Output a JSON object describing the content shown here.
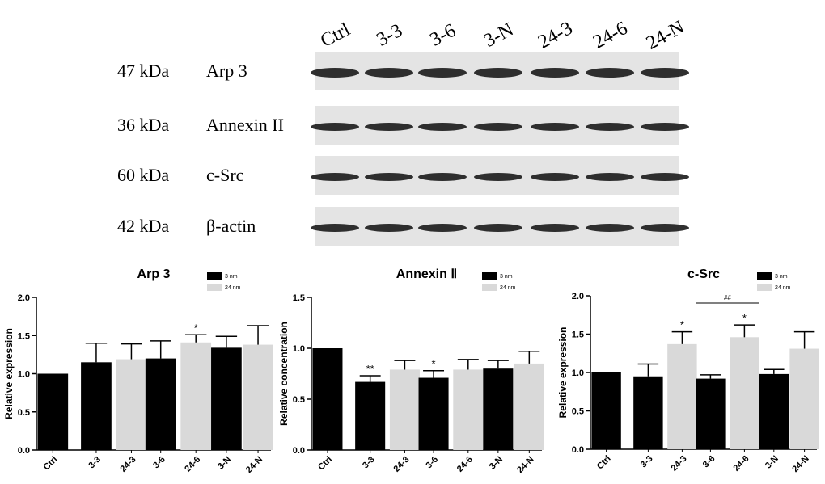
{
  "blot": {
    "lanes": [
      "Ctrl",
      "3-3",
      "3-6",
      "3-N",
      "24-3",
      "24-6",
      "24-N"
    ],
    "rows": [
      {
        "size": "47 kDa",
        "protein": "Arp 3"
      },
      {
        "size": "36 kDa",
        "protein": "Annexin II"
      },
      {
        "size": "60 kDa",
        "protein": "c-Src"
      },
      {
        "size": "42 kDa",
        "protein": "β-actin"
      }
    ]
  },
  "chart_data": [
    {
      "type": "bar",
      "title": "Arp 3",
      "y_label": "Relative expression",
      "categories": [
        "Ctrl",
        "3-3",
        "24-3",
        "3-6",
        "24-6",
        "3-N",
        "24-N"
      ],
      "series": [
        {
          "name": "3 nm",
          "color": "#000000",
          "values": [
            1.0,
            1.15,
            null,
            1.2,
            null,
            1.34,
            null
          ],
          "errors": [
            null,
            0.25,
            null,
            0.23,
            null,
            0.15,
            null
          ]
        },
        {
          "name": "24 nm",
          "color": "#d9d9d9",
          "values": [
            null,
            null,
            1.19,
            null,
            1.41,
            null,
            1.38
          ],
          "errors": [
            null,
            null,
            0.2,
            null,
            0.1,
            null,
            0.25
          ]
        }
      ],
      "value_annotations": [
        null,
        null,
        null,
        null,
        "*",
        null,
        null
      ],
      "ylim": [
        0,
        2
      ],
      "yticks": [
        {
          "value": 0,
          "label": "0.0"
        },
        {
          "value": 0.5,
          "label": "0.5"
        },
        {
          "value": 1,
          "label": "1.0"
        },
        {
          "value": 1.5,
          "label": "1.5"
        },
        {
          "value": 2,
          "label": "2.0"
        }
      ]
    },
    {
      "type": "bar",
      "title": "Annexin Ⅱ",
      "y_label": "Relative concentration",
      "categories": [
        "Ctrl",
        "3-3",
        "24-3",
        "3-6",
        "24-6",
        "3-N",
        "24-N"
      ],
      "series": [
        {
          "name": "3 nm",
          "color": "#000000",
          "values": [
            1.0,
            0.67,
            null,
            0.71,
            null,
            0.8,
            null
          ],
          "errors": [
            null,
            0.06,
            null,
            0.07,
            null,
            0.08,
            null
          ]
        },
        {
          "name": "24 nm",
          "color": "#d9d9d9",
          "values": [
            null,
            null,
            0.79,
            null,
            0.79,
            null,
            0.85
          ],
          "errors": [
            null,
            null,
            0.09,
            null,
            0.1,
            null,
            0.12
          ]
        }
      ],
      "value_annotations": [
        null,
        "**",
        null,
        "*",
        null,
        null,
        null
      ],
      "ylim": [
        0,
        1.5
      ],
      "yticks": [
        {
          "value": 0,
          "label": "0.0"
        },
        {
          "value": 0.5,
          "label": "0.5"
        },
        {
          "value": 1,
          "label": "1.0"
        },
        {
          "value": 1.5,
          "label": "1.5"
        }
      ]
    },
    {
      "type": "bar",
      "title": "c-Src",
      "y_label": "Relative expression",
      "categories": [
        "Ctrl",
        "3-3",
        "24-3",
        "3-6",
        "24-6",
        "3-N",
        "24-N"
      ],
      "series": [
        {
          "name": "3 nm",
          "color": "#000000",
          "values": [
            1.0,
            0.95,
            null,
            0.92,
            null,
            0.98,
            null
          ],
          "errors": [
            null,
            0.16,
            null,
            0.05,
            null,
            0.06,
            null
          ]
        },
        {
          "name": "24 nm",
          "color": "#d9d9d9",
          "values": [
            null,
            null,
            1.37,
            null,
            1.46,
            null,
            1.31
          ],
          "errors": [
            null,
            null,
            0.16,
            null,
            0.16,
            null,
            0.22
          ]
        }
      ],
      "value_annotations": [
        null,
        null,
        "*",
        null,
        "*",
        null,
        null
      ],
      "bracket_label": "##",
      "ylim": [
        0,
        2
      ],
      "yticks": [
        {
          "value": 0,
          "label": "0.0"
        },
        {
          "value": 0.5,
          "label": "0.5"
        },
        {
          "value": 1,
          "label": "1.0"
        },
        {
          "value": 1.5,
          "label": "1.5"
        },
        {
          "value": 2,
          "label": "2.0"
        }
      ]
    }
  ]
}
